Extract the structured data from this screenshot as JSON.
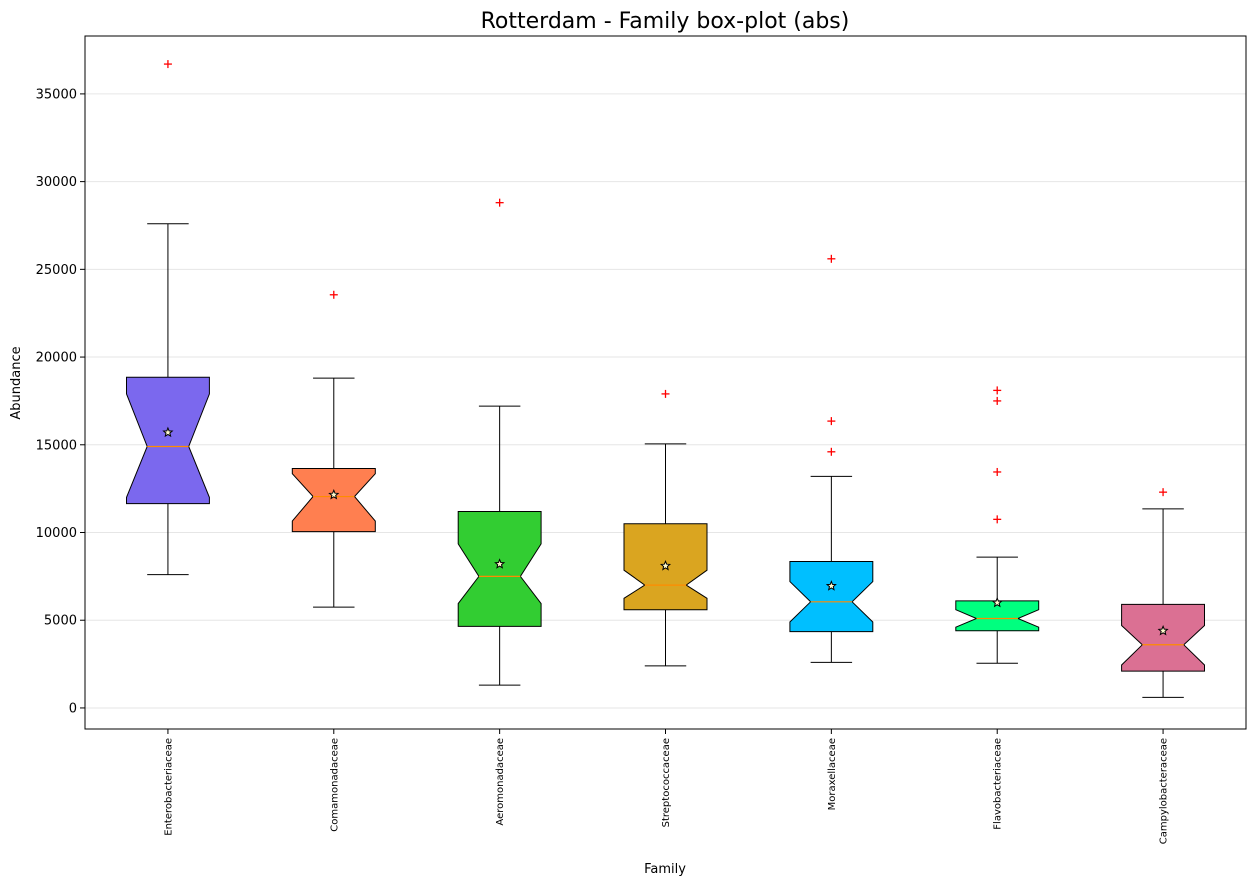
{
  "chart_data": {
    "type": "box",
    "title": "Rotterdam - Family box-plot (abs)",
    "xlabel": "Family",
    "ylabel": "Abundance",
    "ylim": [
      -1200,
      38300
    ],
    "yticks": [
      0,
      5000,
      10000,
      15000,
      20000,
      25000,
      30000,
      35000
    ],
    "grid": "horizontal",
    "notched": true,
    "mean_marker": "star",
    "outlier_color": "#ff0000",
    "outlier_marker": "+",
    "median_color": "#ff8c00",
    "categories": [
      "Enterobacteriaceae",
      "Comamonadaceae",
      "Aeromonadaceae",
      "Streptococcaceae",
      "Moraxellaceae",
      "Flavobacteriaceae",
      "Campylobacteraceae"
    ],
    "boxes": [
      {
        "category": "Enterobacteriaceae",
        "color": "#7b68ee",
        "whisker_low": 7600,
        "q1": 11650,
        "median": 14900,
        "q3": 18850,
        "whisker_high": 27600,
        "mean": 15700,
        "notch_low": 12000,
        "notch_high": 17900,
        "outliers": [
          36700
        ]
      },
      {
        "category": "Comamonadaceae",
        "color": "#ff7f50",
        "whisker_low": 5750,
        "q1": 10050,
        "median": 12050,
        "q3": 13650,
        "whisker_high": 18800,
        "mean": 12150,
        "notch_low": 10650,
        "notch_high": 13350,
        "outliers": [
          23550
        ]
      },
      {
        "category": "Aeromonadaceae",
        "color": "#32cd32",
        "whisker_low": 1300,
        "q1": 4650,
        "median": 7500,
        "q3": 11200,
        "whisker_high": 17200,
        "mean": 8200,
        "notch_low": 5950,
        "notch_high": 9350,
        "outliers": [
          28800
        ]
      },
      {
        "category": "Streptococcaceae",
        "color": "#daa520",
        "whisker_low": 2400,
        "q1": 5600,
        "median": 7000,
        "q3": 10500,
        "whisker_high": 15050,
        "mean": 8100,
        "notch_low": 6250,
        "notch_high": 7850,
        "outliers": [
          17900
        ]
      },
      {
        "category": "Moraxellaceae",
        "color": "#00bfff",
        "whisker_low": 2600,
        "q1": 4350,
        "median": 6050,
        "q3": 8350,
        "whisker_high": 13200,
        "mean": 6950,
        "notch_low": 4900,
        "notch_high": 7200,
        "outliers": [
          25600,
          16350,
          14600
        ]
      },
      {
        "category": "Flavobacteriaceae",
        "color": "#00ff7f",
        "whisker_low": 2550,
        "q1": 4400,
        "median": 5100,
        "q3": 6100,
        "whisker_high": 8600,
        "mean": 6000,
        "notch_low": 4600,
        "notch_high": 5600,
        "outliers": [
          18100,
          17500,
          13450,
          10750
        ]
      },
      {
        "category": "Campylobacteraceae",
        "color": "#db7093",
        "whisker_low": 600,
        "q1": 2100,
        "median": 3600,
        "q3": 5900,
        "whisker_high": 11350,
        "mean": 4400,
        "notch_low": 2450,
        "notch_high": 4700,
        "outliers": [
          12300
        ]
      }
    ]
  }
}
